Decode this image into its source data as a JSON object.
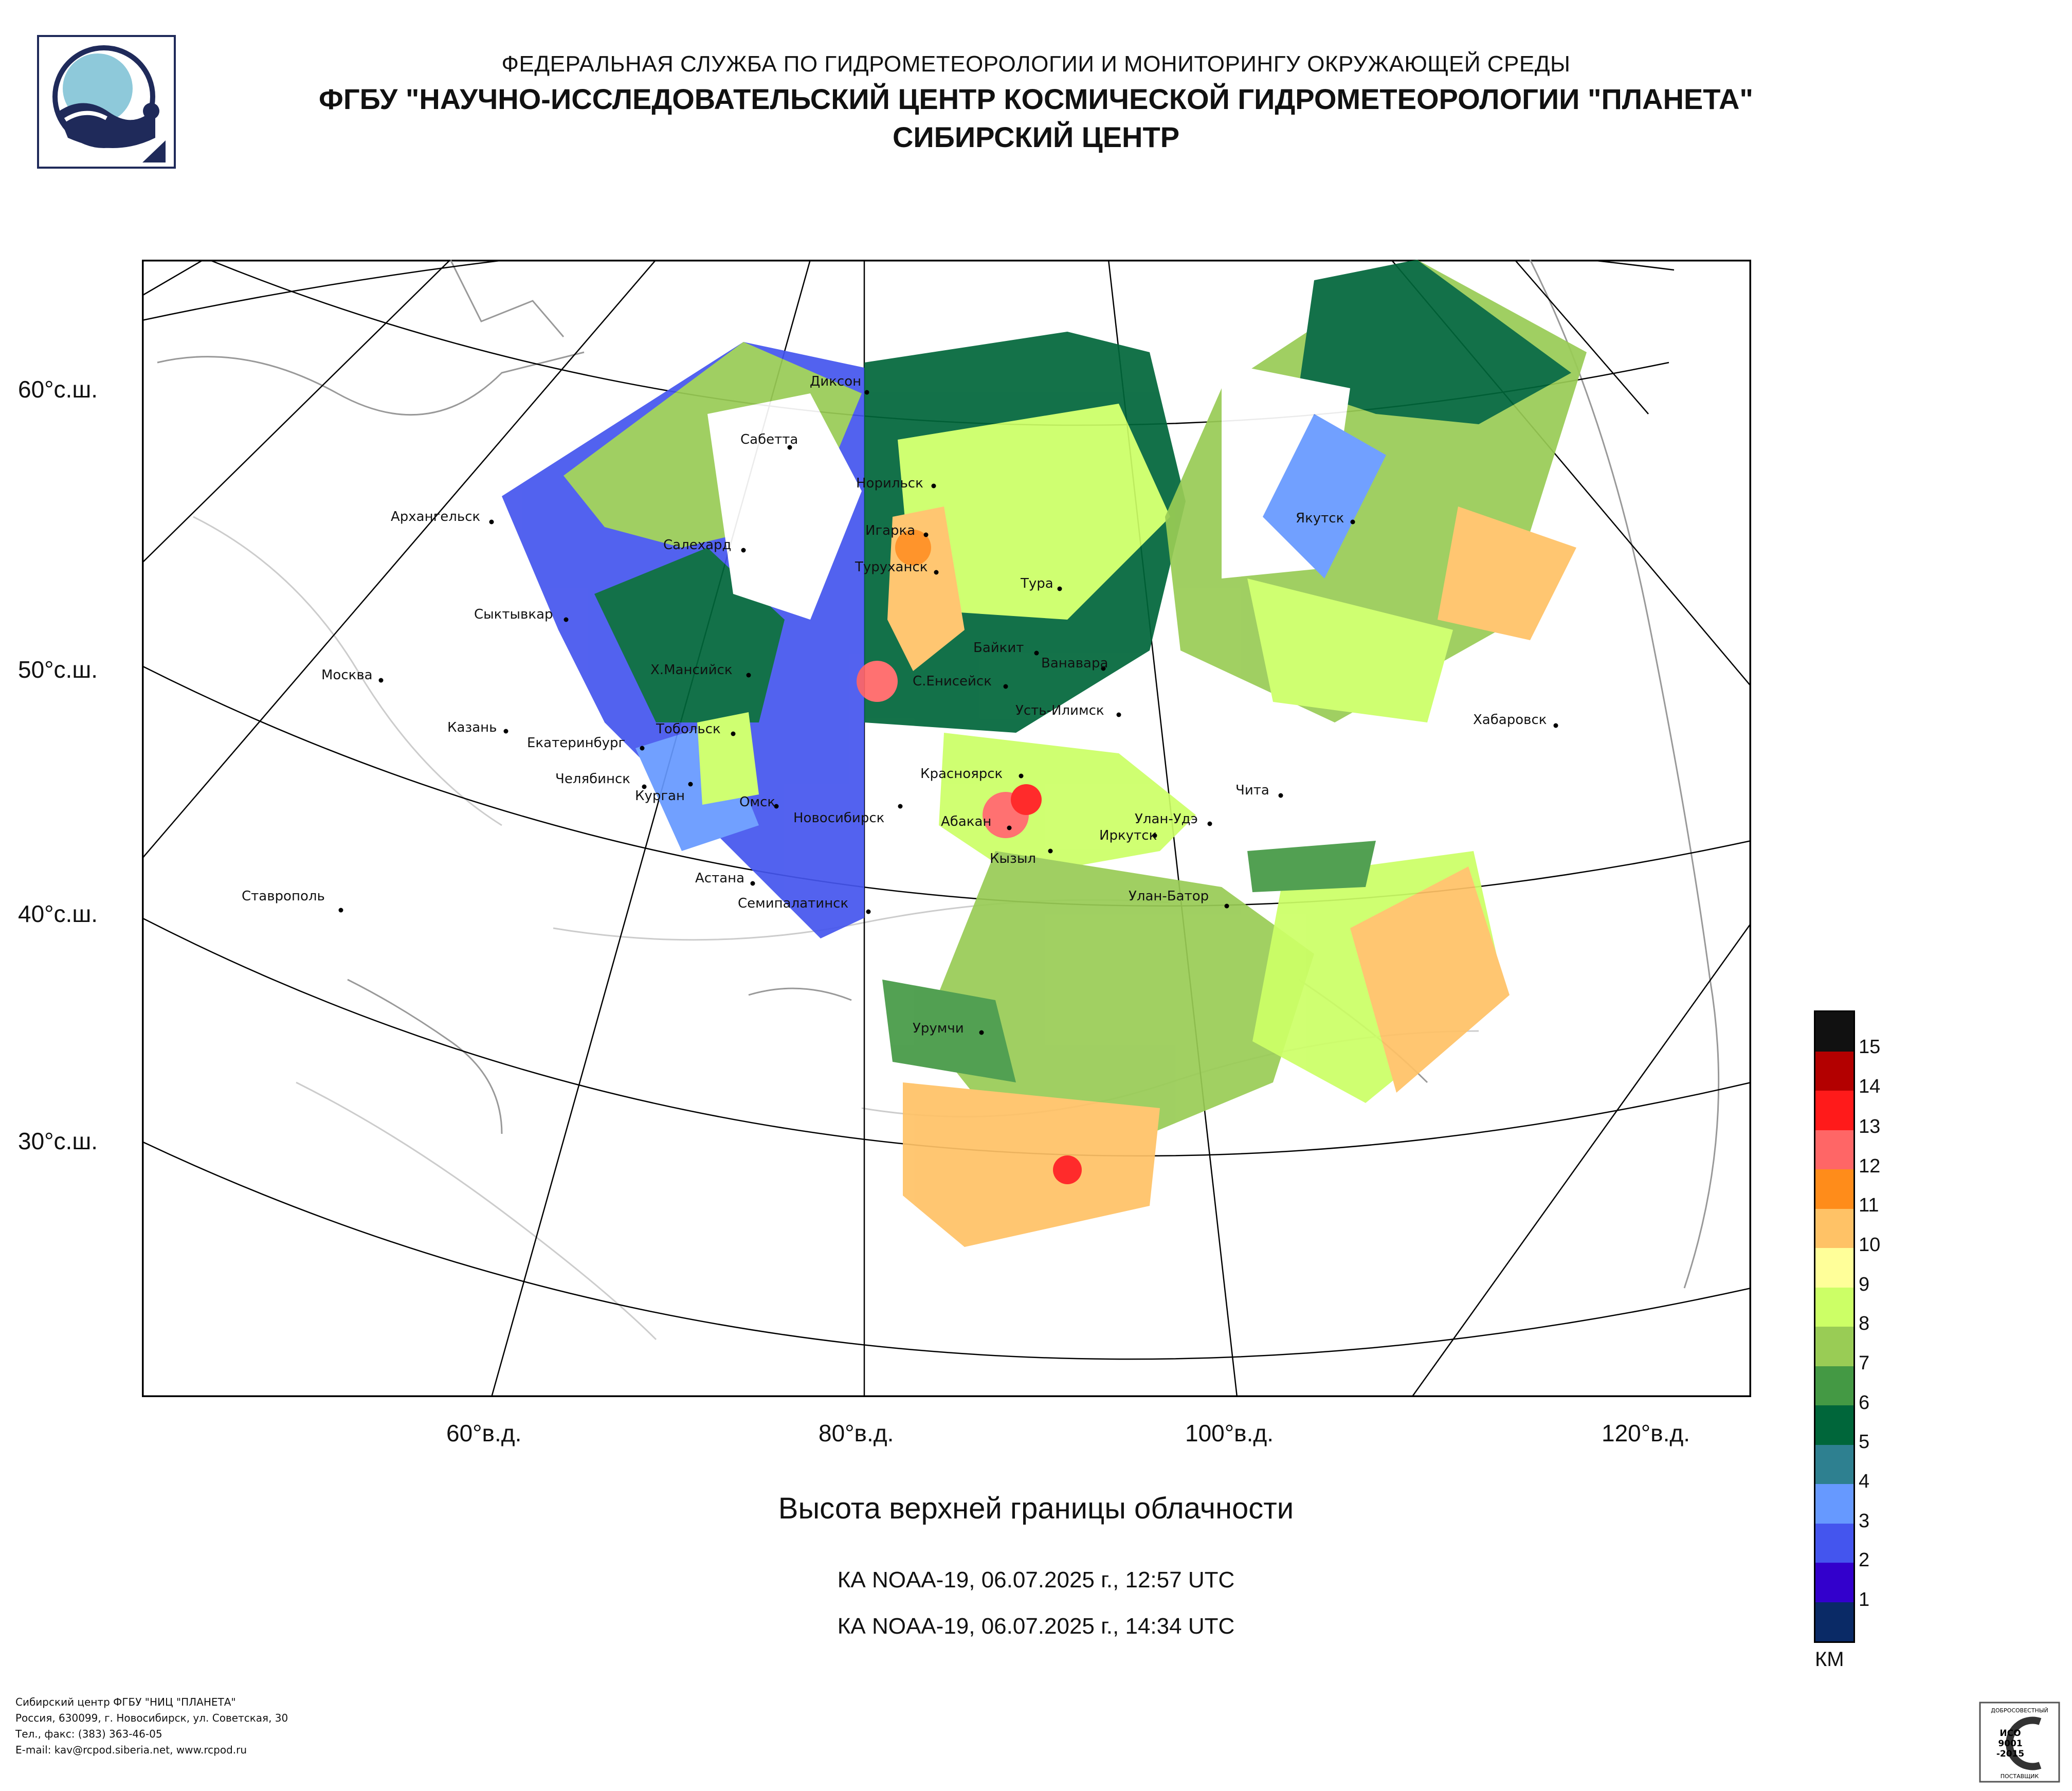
{
  "header": {
    "line1": "ФЕДЕРАЛЬНАЯ СЛУЖБА ПО ГИДРОМЕТЕОРОЛОГИИ И МОНИТОРИНГУ ОКРУЖАЮЩЕЙ СРЕДЫ",
    "line2": "ФГБУ \"НАУЧНО-ИССЛЕДОВАТЕЛЬСКИЙ ЦЕНТР КОСМИЧЕСКОЙ ГИДРОМЕТЕОРОЛОГИИ \"ПЛАНЕТА\"",
    "line3": "СИБИРСКИЙ ЦЕНТР"
  },
  "logo_icon": "planeta-logo-icon",
  "map": {
    "lat_labels": [
      "60°с.ш.",
      "50°с.ш.",
      "40°с.ш.",
      "30°с.ш."
    ],
    "lon_labels": [
      "60°в.д.",
      "80°в.д.",
      "100°в.д.",
      "120°в.д."
    ],
    "cities": [
      "Диксон",
      "Сабетта",
      "Норильск",
      "Архангельск",
      "Игарка",
      "Салехард",
      "Туруханск",
      "Тура",
      "Якутск",
      "Сыктывкар",
      "Байкит",
      "Ванавара",
      "Москва",
      "Х.Мансийск",
      "С.Енисейск",
      "Усть-Илимск",
      "Казань",
      "Тобольск",
      "Екатеринбург",
      "Хабаровск",
      "Красноярск",
      "Челябинск",
      "Курган",
      "Омск",
      "Чита",
      "Новосибирск",
      "Абакан",
      "Улан-Удэ",
      "Иркутск",
      "Кызыл",
      "Астана",
      "Улан-Батор",
      "Ставрополь",
      "Семипалатинск",
      "Урумчи"
    ]
  },
  "legend": {
    "levels": [
      "15",
      "14",
      "13",
      "12",
      "11",
      "10",
      "9",
      "8",
      "7",
      "6",
      "5",
      "4",
      "3",
      "2",
      "1"
    ],
    "colors": [
      "#111111",
      "#b30000",
      "#ff1a1a",
      "#ff6666",
      "#ff8c1a",
      "#ffc266",
      "#ffff99",
      "#ccff66",
      "#99cc55",
      "#449944",
      "#00663a",
      "#2e8090",
      "#6699ff",
      "#4455ee",
      "#3300cc",
      "#0a2a66"
    ],
    "unit": "КМ"
  },
  "product": {
    "title": "Высота верхней границы облачности",
    "pass1": "КА NOAA-19, 06.07.2025 г., 12:57 UTC",
    "pass2": "КА NOAA-19, 06.07.2025 г., 14:34 UTC"
  },
  "footer": {
    "line1": "Сибирский центр ФГБУ \"НИЦ \"ПЛАНЕТА\"",
    "line2": "Россия, 630099, г. Новосибирск, ул. Советская, 30",
    "line3": "Тел., факс: (383) 363-46-05",
    "line4": "E-mail: kav@rcpod.siberia.net, www.rcpod.ru"
  },
  "certificate": {
    "top": "ДОБРОСОВЕСТНЫЙ",
    "line1": "ИСО",
    "line2": "9001",
    "line3": "-2015",
    "bottom": "ПОСТАВЩИК"
  }
}
